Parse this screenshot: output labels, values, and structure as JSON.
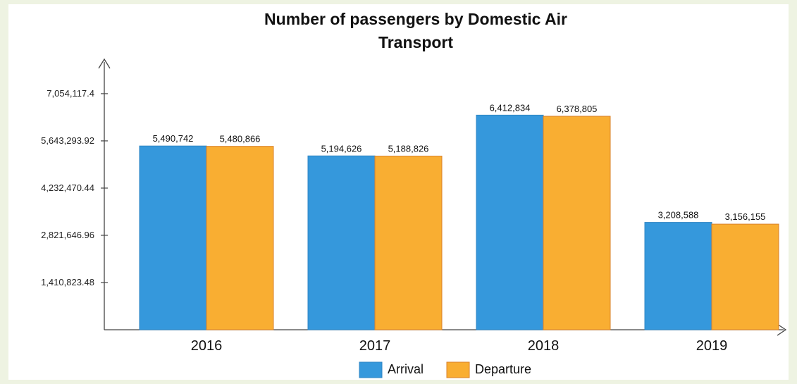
{
  "chart_data": {
    "type": "bar",
    "title_lines": [
      "Number of passengers by Domestic Air",
      "Transport"
    ],
    "xlabel": "",
    "ylabel": "",
    "categories": [
      "2016",
      "2017",
      "2018",
      "2019"
    ],
    "series": [
      {
        "name": "Arrival",
        "color": "#3598dc",
        "values": [
          5490742,
          5194626,
          6412834,
          3208588
        ],
        "labels": [
          "5,490,742",
          "5,194,626",
          "6,412,834",
          "3,208,588"
        ]
      },
      {
        "name": "Departure",
        "color": "#f9ae32",
        "values": [
          5480866,
          5188826,
          6378805,
          3156155
        ],
        "labels": [
          "5,480,866",
          "5,188,826",
          "6,378,805",
          "3,156,155"
        ]
      }
    ],
    "yticks": [
      1410823.48,
      2821646.96,
      4232470.44,
      5643293.92,
      7054117.4
    ],
    "ytick_labels": [
      "1,410,823.48",
      "2,821,646.96",
      "4,232,470.44",
      "5,643,293.92",
      "7,054,117.4"
    ],
    "ylim": [
      0,
      8000000
    ],
    "grid": false,
    "legend_position": "bottom"
  }
}
